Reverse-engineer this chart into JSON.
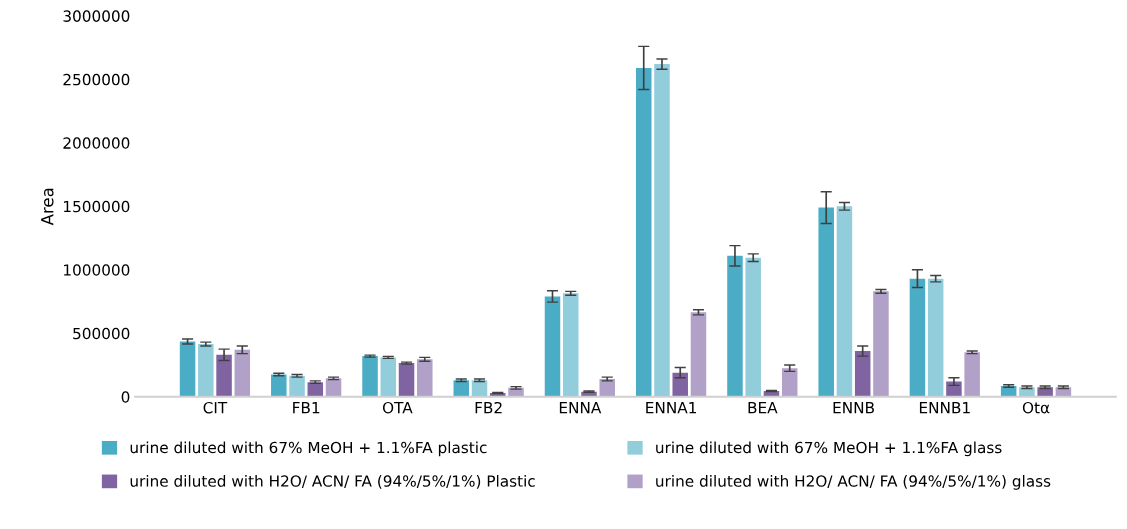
{
  "chart_data": {
    "type": "bar",
    "ylabel": "Area",
    "categories": [
      "CIT",
      "FB1",
      "OTA",
      "FB2",
      "ENNA",
      "ENNA1",
      "BEA",
      "ENNB",
      "ENNB1",
      "Otα"
    ],
    "series": [
      {
        "name": "urine diluted with 67% MeOH + 1.1%FA plastic",
        "color": "#4bacc6",
        "values": [
          435000,
          175000,
          320000,
          130000,
          790000,
          2590000,
          1110000,
          1490000,
          930000,
          85000
        ],
        "errors": [
          20000,
          10000,
          8000,
          10000,
          45000,
          170000,
          80000,
          125000,
          70000,
          10000
        ]
      },
      {
        "name": "urine diluted with 67% MeOH + 1.1%FA glass",
        "color": "#92cddc",
        "values": [
          415000,
          165000,
          310000,
          130000,
          815000,
          2620000,
          1095000,
          1500000,
          930000,
          75000
        ],
        "errors": [
          15000,
          10000,
          8000,
          10000,
          15000,
          40000,
          30000,
          30000,
          25000,
          10000
        ]
      },
      {
        "name": "urine diluted with H2O/ ACN/ FA (94%/5%/1%) Plastic",
        "color": "#8064a2",
        "values": [
          330000,
          115000,
          265000,
          30000,
          40000,
          190000,
          45000,
          360000,
          120000,
          75000
        ],
        "errors": [
          45000,
          10000,
          8000,
          4000,
          5000,
          40000,
          5000,
          40000,
          30000,
          10000
        ]
      },
      {
        "name": "urine diluted with H2O/ ACN/ FA (94%/5%/1%) glass",
        "color": "#b1a0c7",
        "values": [
          370000,
          145000,
          295000,
          70000,
          140000,
          665000,
          225000,
          830000,
          350000,
          75000
        ],
        "errors": [
          30000,
          10000,
          15000,
          10000,
          15000,
          20000,
          25000,
          15000,
          10000,
          10000
        ]
      }
    ],
    "ylim": [
      0,
      3000000
    ],
    "yticks": [
      0,
      500000,
      1000000,
      1500000,
      2000000,
      2500000,
      3000000
    ],
    "grid": false,
    "legend": "bottom"
  }
}
